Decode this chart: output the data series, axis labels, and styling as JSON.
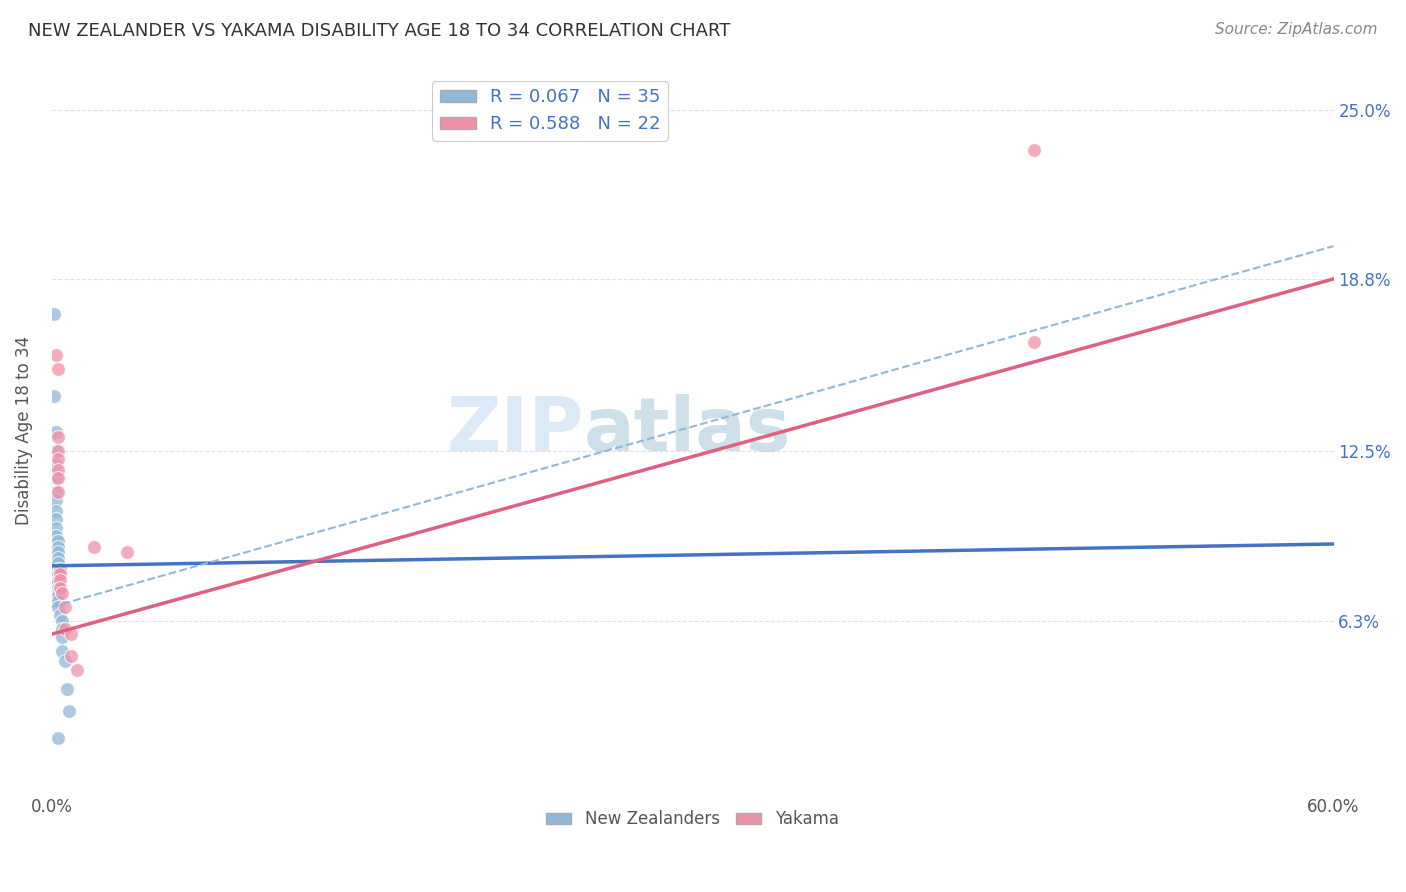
{
  "title": "NEW ZEALANDER VS YAKAMA DISABILITY AGE 18 TO 34 CORRELATION CHART",
  "source": "Source: ZipAtlas.com",
  "ylabel": "Disability Age 18 to 34",
  "xlim": [
    0.0,
    0.6
  ],
  "ylim": [
    0.0,
    0.265
  ],
  "ytick_positions": [
    0.063,
    0.125,
    0.188,
    0.25
  ],
  "ytick_labels": [
    "6.3%",
    "12.5%",
    "18.8%",
    "25.0%"
  ],
  "watermark_top": "ZIP",
  "watermark_bot": "atlas",
  "legend_entries": [
    {
      "label": "R = 0.067   N = 35"
    },
    {
      "label": "R = 0.588   N = 22"
    }
  ],
  "legend_labels": [
    "New Zealanders",
    "Yakama"
  ],
  "nz_scatter": [
    [
      0.001,
      0.175
    ],
    [
      0.001,
      0.145
    ],
    [
      0.002,
      0.132
    ],
    [
      0.002,
      0.125
    ],
    [
      0.002,
      0.12
    ],
    [
      0.002,
      0.115
    ],
    [
      0.002,
      0.11
    ],
    [
      0.002,
      0.107
    ],
    [
      0.002,
      0.103
    ],
    [
      0.002,
      0.1
    ],
    [
      0.002,
      0.097
    ],
    [
      0.002,
      0.094
    ],
    [
      0.003,
      0.092
    ],
    [
      0.003,
      0.09
    ],
    [
      0.003,
      0.088
    ],
    [
      0.003,
      0.086
    ],
    [
      0.003,
      0.084
    ],
    [
      0.003,
      0.082
    ],
    [
      0.003,
      0.08
    ],
    [
      0.003,
      0.078
    ],
    [
      0.003,
      0.077
    ],
    [
      0.003,
      0.075
    ],
    [
      0.003,
      0.073
    ],
    [
      0.003,
      0.072
    ],
    [
      0.003,
      0.07
    ],
    [
      0.003,
      0.068
    ],
    [
      0.004,
      0.065
    ],
    [
      0.005,
      0.063
    ],
    [
      0.005,
      0.06
    ],
    [
      0.005,
      0.057
    ],
    [
      0.005,
      0.052
    ],
    [
      0.006,
      0.048
    ],
    [
      0.007,
      0.038
    ],
    [
      0.008,
      0.03
    ],
    [
      0.003,
      0.02
    ]
  ],
  "yakama_scatter": [
    [
      0.002,
      0.16
    ],
    [
      0.003,
      0.155
    ],
    [
      0.003,
      0.13
    ],
    [
      0.003,
      0.125
    ],
    [
      0.003,
      0.122
    ],
    [
      0.003,
      0.118
    ],
    [
      0.003,
      0.115
    ],
    [
      0.003,
      0.11
    ],
    [
      0.004,
      0.082
    ],
    [
      0.004,
      0.08
    ],
    [
      0.004,
      0.078
    ],
    [
      0.004,
      0.075
    ],
    [
      0.005,
      0.073
    ],
    [
      0.006,
      0.068
    ],
    [
      0.006,
      0.06
    ],
    [
      0.009,
      0.058
    ],
    [
      0.009,
      0.05
    ],
    [
      0.012,
      0.045
    ],
    [
      0.02,
      0.09
    ],
    [
      0.035,
      0.088
    ],
    [
      0.46,
      0.165
    ],
    [
      0.46,
      0.235
    ]
  ],
  "nz_line_x": [
    0.0,
    0.6
  ],
  "nz_line_y": [
    0.083,
    0.091
  ],
  "yakama_line_x": [
    0.0,
    0.6
  ],
  "yakama_line_y": [
    0.058,
    0.188
  ],
  "dashed_line_x": [
    0.0,
    0.6
  ],
  "dashed_line_y": [
    0.068,
    0.2
  ],
  "scatter_size": 100,
  "bg_color": "#ffffff",
  "grid_color": "#dddddd",
  "nz_color": "#90b8d8",
  "yakama_color": "#f090a8",
  "nz_line_color": "#4472c4",
  "yakama_line_color": "#e06080",
  "dashed_line_color": "#90b8d8",
  "title_color": "#333333",
  "ytick_color": "#4472c4",
  "source_color": "#888888"
}
